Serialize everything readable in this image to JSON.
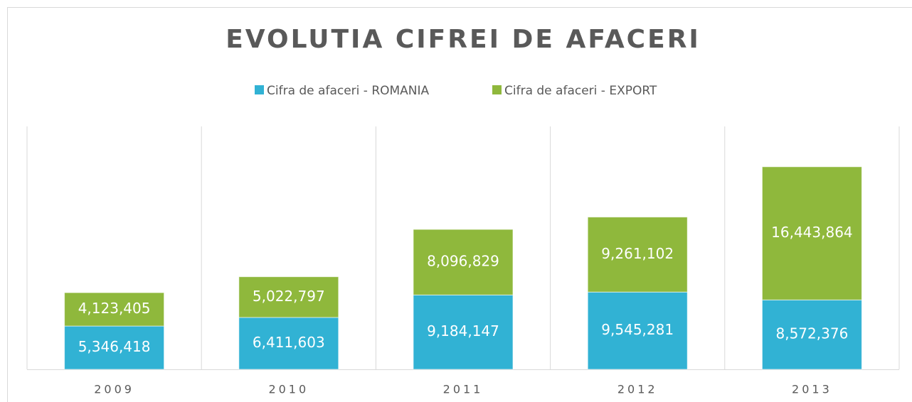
{
  "chart_data": {
    "type": "bar",
    "stacked": true,
    "title": "EVOLUTIA CIFREI DE AFACERI",
    "categories": [
      "2009",
      "2010",
      "2011",
      "2012",
      "2013"
    ],
    "series": [
      {
        "name": "Cifra de afaceri - ROMANIA",
        "color": "#31b2d4",
        "values": [
          5346418,
          6411603,
          9184147,
          9545281,
          8572376
        ],
        "value_labels": [
          "5,346,418",
          "6,411,603",
          "9,184,147",
          "9,545,281",
          "8,572,376"
        ]
      },
      {
        "name": "Cifra de afaceri - EXPORT",
        "color": "#8fb83c",
        "values": [
          4123405,
          5022797,
          8096829,
          9261102,
          16443864
        ],
        "value_labels": [
          "4,123,405",
          "5,022,797",
          "8,096,829",
          "9,261,102",
          "16,443,864"
        ]
      }
    ],
    "ylim": [
      0,
      30000000
    ],
    "grid": true,
    "legend": "top"
  }
}
